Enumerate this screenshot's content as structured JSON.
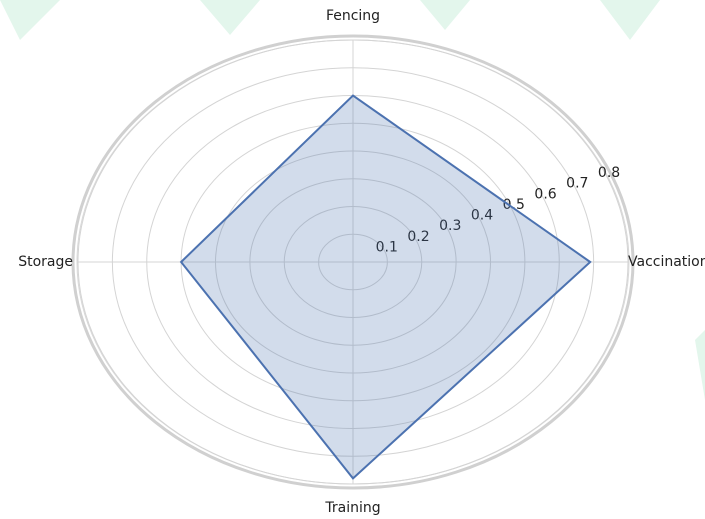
{
  "chart_data": {
    "type": "radar",
    "categories": [
      "Vaccination",
      "Fencing",
      "Storage",
      "Training"
    ],
    "values": [
      0.69,
      0.6,
      0.5,
      0.78
    ],
    "color": "#4c72b0",
    "ylim": [
      0,
      0.8
    ],
    "yticks": [
      0.1,
      0.2,
      0.3,
      0.4,
      0.5,
      0.6,
      0.7,
      0.8
    ],
    "grid": true
  }
}
